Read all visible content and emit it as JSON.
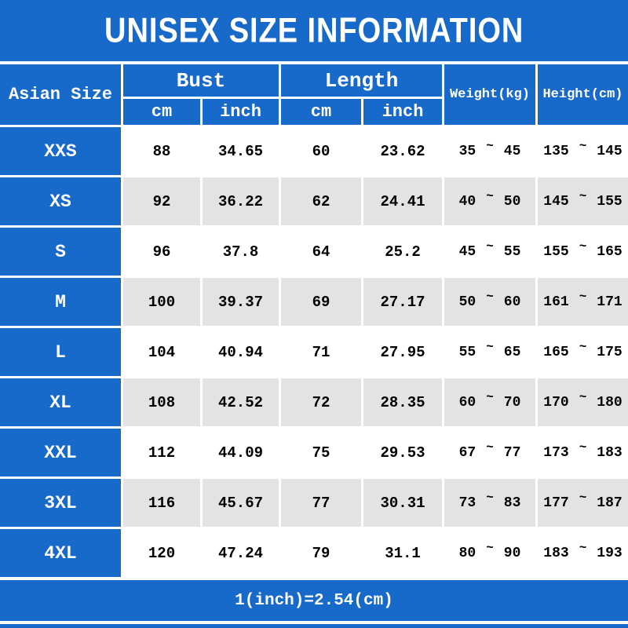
{
  "title": "UNISEX SIZE INFORMATION",
  "footer_note": "1(inch)=2.54(cm)",
  "colors": {
    "blue": "#1769ca",
    "alt_row": "#e3e3e3",
    "gridline": "#ffffff",
    "body_text": "#000000",
    "header_text": "#ffffff"
  },
  "table": {
    "corner_label": "Asian Size",
    "groups": [
      "Bust",
      "Length"
    ],
    "sub_headers": [
      "cm",
      "inch",
      "cm",
      "inch"
    ],
    "weight_header": "Weight(kg)",
    "height_header": "Height(cm)",
    "separator": "~",
    "rows": [
      {
        "size": "XXS",
        "bust_cm": "88",
        "bust_inch": "34.65",
        "length_cm": "60",
        "length_inch": "23.62",
        "weight_min": "35",
        "weight_max": "45",
        "height_min": "135",
        "height_max": "145"
      },
      {
        "size": "XS",
        "bust_cm": "92",
        "bust_inch": "36.22",
        "length_cm": "62",
        "length_inch": "24.41",
        "weight_min": "40",
        "weight_max": "50",
        "height_min": "145",
        "height_max": "155"
      },
      {
        "size": "S",
        "bust_cm": "96",
        "bust_inch": "37.8",
        "length_cm": "64",
        "length_inch": "25.2",
        "weight_min": "45",
        "weight_max": "55",
        "height_min": "155",
        "height_max": "165"
      },
      {
        "size": "M",
        "bust_cm": "100",
        "bust_inch": "39.37",
        "length_cm": "69",
        "length_inch": "27.17",
        "weight_min": "50",
        "weight_max": "60",
        "height_min": "161",
        "height_max": "171"
      },
      {
        "size": "L",
        "bust_cm": "104",
        "bust_inch": "40.94",
        "length_cm": "71",
        "length_inch": "27.95",
        "weight_min": "55",
        "weight_max": "65",
        "height_min": "165",
        "height_max": "175"
      },
      {
        "size": "XL",
        "bust_cm": "108",
        "bust_inch": "42.52",
        "length_cm": "72",
        "length_inch": "28.35",
        "weight_min": "60",
        "weight_max": "70",
        "height_min": "170",
        "height_max": "180"
      },
      {
        "size": "XXL",
        "bust_cm": "112",
        "bust_inch": "44.09",
        "length_cm": "75",
        "length_inch": "29.53",
        "weight_min": "67",
        "weight_max": "77",
        "height_min": "173",
        "height_max": "183"
      },
      {
        "size": "3XL",
        "bust_cm": "116",
        "bust_inch": "45.67",
        "length_cm": "77",
        "length_inch": "30.31",
        "weight_min": "73",
        "weight_max": "83",
        "height_min": "177",
        "height_max": "187"
      },
      {
        "size": "4XL",
        "bust_cm": "120",
        "bust_inch": "47.24",
        "length_cm": "79",
        "length_inch": "31.1",
        "weight_min": "80",
        "weight_max": "90",
        "height_min": "183",
        "height_max": "193"
      }
    ]
  },
  "chart_data": {
    "type": "table",
    "title": "UNISEX SIZE INFORMATION",
    "columns": [
      "Asian Size",
      "Bust (cm)",
      "Bust (inch)",
      "Length (cm)",
      "Length (inch)",
      "Weight (kg)",
      "Height (cm)"
    ],
    "rows": [
      [
        "XXS",
        88,
        34.65,
        60,
        23.62,
        "35~45",
        "135~145"
      ],
      [
        "XS",
        92,
        36.22,
        62,
        24.41,
        "40~50",
        "145~155"
      ],
      [
        "S",
        96,
        37.8,
        64,
        25.2,
        "45~55",
        "155~165"
      ],
      [
        "M",
        100,
        39.37,
        69,
        27.17,
        "50~60",
        "161~171"
      ],
      [
        "L",
        104,
        40.94,
        71,
        27.95,
        "55~65",
        "165~175"
      ],
      [
        "XL",
        108,
        42.52,
        72,
        28.35,
        "60~70",
        "170~180"
      ],
      [
        "XXL",
        112,
        44.09,
        75,
        29.53,
        "67~77",
        "173~183"
      ],
      [
        "3XL",
        116,
        45.67,
        77,
        30.31,
        "73~83",
        "177~187"
      ],
      [
        "4XL",
        120,
        47.24,
        79,
        31.1,
        "80~90",
        "183~193"
      ]
    ],
    "note": "1(inch)=2.54(cm)",
    "layout": {
      "header_fill": "#1769ca",
      "alt_row_fill": "#e3e3e3",
      "grid": true
    }
  }
}
